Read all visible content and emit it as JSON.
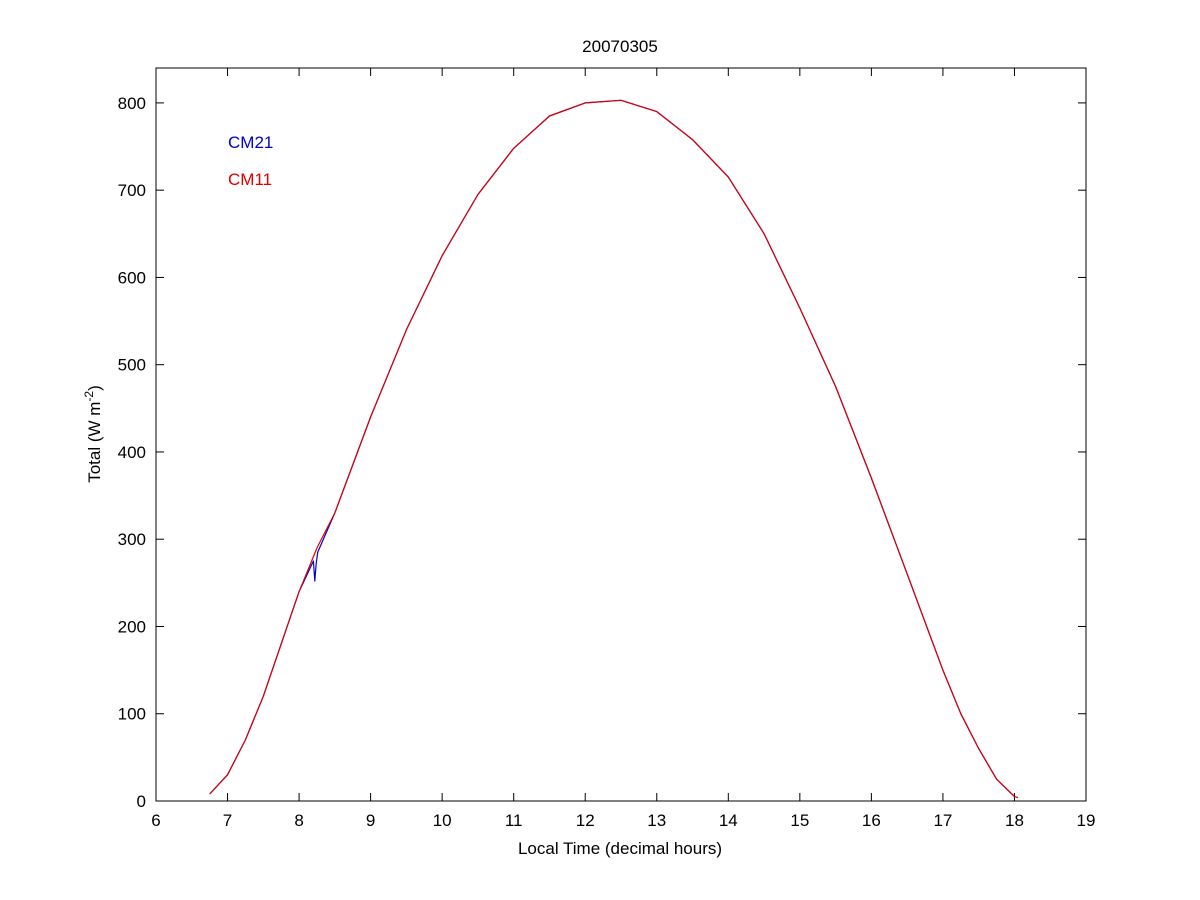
{
  "chart_data": {
    "type": "line",
    "title": "20070305",
    "xlabel": "Local Time (decimal hours)",
    "ylabel_main": "Total (W m",
    "ylabel_sup": "-2",
    "ylabel_tail": ")",
    "xlim": [
      6,
      19
    ],
    "ylim": [
      0,
      840
    ],
    "xticks": [
      6,
      7,
      8,
      9,
      10,
      11,
      12,
      13,
      14,
      15,
      16,
      17,
      18,
      19
    ],
    "yticks": [
      0,
      100,
      200,
      300,
      400,
      500,
      600,
      700,
      800
    ],
    "grid": false,
    "legend_placement": "top-left",
    "series": [
      {
        "name": "CM21",
        "color": "#0000cc",
        "x": [
          6.75,
          7.0,
          7.25,
          7.5,
          7.75,
          8.0,
          8.2,
          8.22,
          8.24,
          8.26,
          8.5,
          9.0,
          9.5,
          10.0,
          10.5,
          11.0,
          11.5,
          12.0,
          12.5,
          13.0,
          13.5,
          14.0,
          14.5,
          15.0,
          15.5,
          16.0,
          16.5,
          17.0,
          17.25,
          17.5,
          17.75,
          18.0
        ],
        "y": [
          8,
          30,
          70,
          120,
          180,
          240,
          275,
          252,
          272,
          285,
          330,
          440,
          540,
          625,
          695,
          748,
          785,
          800,
          803,
          790,
          758,
          715,
          650,
          565,
          475,
          370,
          260,
          150,
          100,
          60,
          25,
          5
        ]
      },
      {
        "name": "CM11",
        "color": "#dd0000",
        "x": [
          6.75,
          7.0,
          7.25,
          7.5,
          7.75,
          8.0,
          8.25,
          8.5,
          9.0,
          9.5,
          10.0,
          10.5,
          11.0,
          11.5,
          12.0,
          12.5,
          13.0,
          13.5,
          14.0,
          14.5,
          15.0,
          15.5,
          16.0,
          16.5,
          17.0,
          17.25,
          17.5,
          17.75,
          18.0,
          18.05
        ],
        "y": [
          8,
          30,
          70,
          120,
          180,
          240,
          290,
          330,
          440,
          540,
          625,
          695,
          748,
          785,
          800,
          803,
          790,
          758,
          715,
          650,
          565,
          475,
          370,
          260,
          150,
          100,
          60,
          25,
          5,
          4
        ]
      }
    ]
  }
}
